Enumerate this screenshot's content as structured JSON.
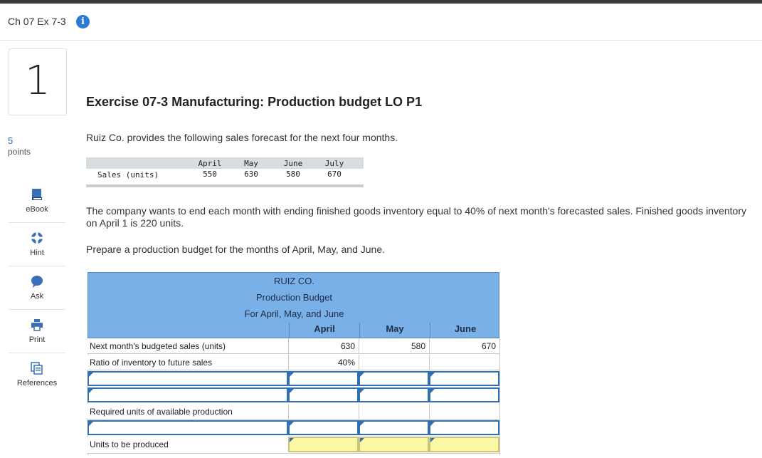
{
  "header": {
    "title": "Ch 07 Ex 7-3",
    "info_icon": "info-icon"
  },
  "question": {
    "number": "1",
    "points_value": "5",
    "points_label": "points"
  },
  "tools": [
    {
      "label": "eBook",
      "icon": "book-icon"
    },
    {
      "label": "Hint",
      "icon": "hint-icon"
    },
    {
      "label": "Ask",
      "icon": "chat-icon"
    },
    {
      "label": "Print",
      "icon": "print-icon"
    },
    {
      "label": "References",
      "icon": "references-icon"
    }
  ],
  "exercise": {
    "title": "Exercise 07-3 Manufacturing: Production budget LO P1",
    "intro": "Ruiz Co. provides the following sales forecast for the next four months.",
    "paragraph2": "The company wants to end each month with ending finished goods inventory equal to 40% of next month's forecasted sales. Finished goods inventory on April 1 is 220 units.",
    "paragraph3": "Prepare a production budget for the months of April, May, and June."
  },
  "forecast": {
    "row_label": "Sales (units)",
    "months": [
      "April",
      "May",
      "June",
      "July"
    ],
    "values": [
      "550",
      "630",
      "580",
      "670"
    ]
  },
  "budget": {
    "company": "RUIZ CO.",
    "title": "Production Budget",
    "period": "For April, May, and June",
    "columns": [
      "April",
      "May",
      "June"
    ],
    "rows": {
      "next_sales": {
        "label": "Next month's budgeted sales (units)",
        "values": [
          "630",
          "580",
          "670"
        ]
      },
      "ratio": {
        "label": "Ratio of inventory to future sales",
        "values": [
          "40%",
          "",
          ""
        ]
      },
      "required": {
        "label": "Required units of available production"
      },
      "produced": {
        "label": "Units to be produced"
      }
    }
  },
  "colors": {
    "accent": "#2b7bd6",
    "table_header": "#7ab0e8",
    "input_border": "#2f6fb3",
    "answer_fill": "#fbf7a3"
  }
}
